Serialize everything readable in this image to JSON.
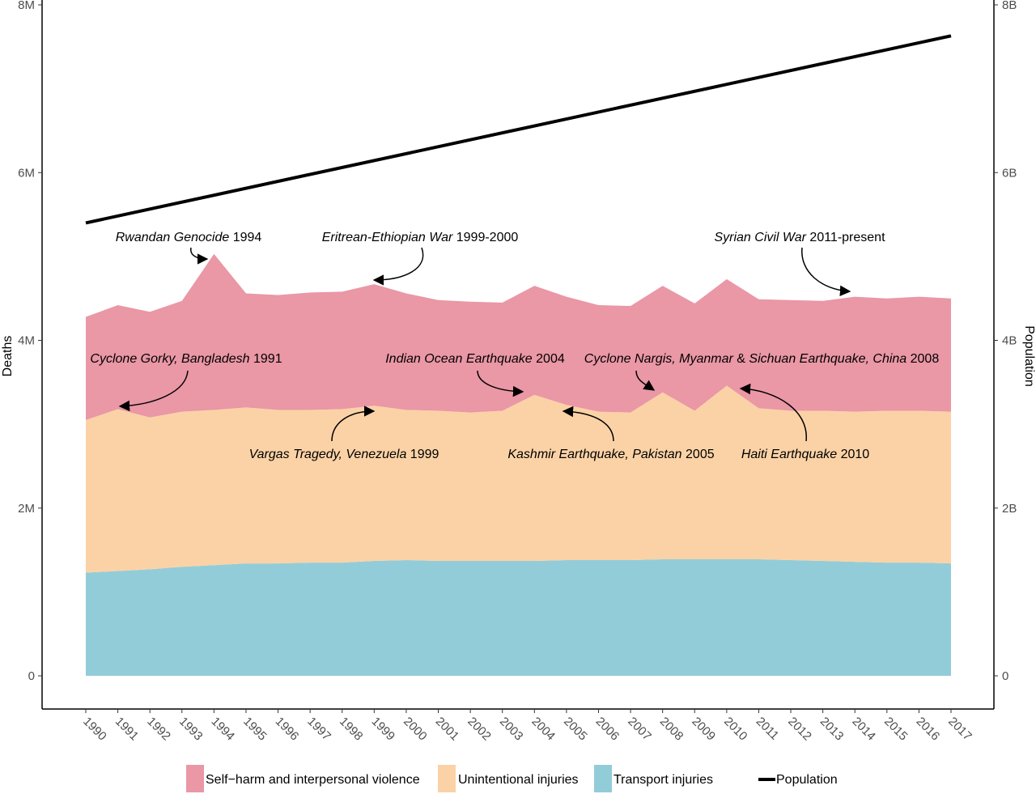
{
  "chart_data": {
    "type": "area",
    "stacked": true,
    "x": [
      1990,
      1991,
      1992,
      1993,
      1994,
      1995,
      1996,
      1997,
      1998,
      1999,
      2000,
      2001,
      2002,
      2003,
      2004,
      2005,
      2006,
      2007,
      2008,
      2009,
      2010,
      2011,
      2012,
      2013,
      2014,
      2015,
      2016,
      2017
    ],
    "x_tick_labels": [
      "1990",
      "1991",
      "1992",
      "1993",
      "1994",
      "1995",
      "1996",
      "1997",
      "1998",
      "1999",
      "2000",
      "2001",
      "2002",
      "2003",
      "2004",
      "2005",
      "2006",
      "2007",
      "2008",
      "2009",
      "2010",
      "2011",
      "2012",
      "2013",
      "2014",
      "2015",
      "2016",
      "2017"
    ],
    "series": [
      {
        "name": "Transport injuries",
        "color": "#93ccd9",
        "values": [
          1230000,
          1250000,
          1270000,
          1300000,
          1320000,
          1340000,
          1340000,
          1350000,
          1350000,
          1370000,
          1380000,
          1370000,
          1370000,
          1370000,
          1370000,
          1380000,
          1380000,
          1380000,
          1390000,
          1390000,
          1390000,
          1390000,
          1380000,
          1370000,
          1360000,
          1350000,
          1350000,
          1340000
        ]
      },
      {
        "name": "Unintentional injuries",
        "color": "#fbd2a6",
        "values": [
          1820000,
          1930000,
          1810000,
          1850000,
          1850000,
          1860000,
          1830000,
          1820000,
          1830000,
          1850000,
          1790000,
          1790000,
          1770000,
          1790000,
          1980000,
          1850000,
          1770000,
          1760000,
          1990000,
          1770000,
          2070000,
          1800000,
          1780000,
          1790000,
          1790000,
          1810000,
          1810000,
          1810000
        ]
      },
      {
        "name": "Self−harm and interpersonal violence",
        "color": "#ea97a6",
        "values": [
          1230000,
          1240000,
          1260000,
          1320000,
          1860000,
          1360000,
          1370000,
          1400000,
          1400000,
          1450000,
          1390000,
          1320000,
          1320000,
          1290000,
          1300000,
          1290000,
          1270000,
          1270000,
          1270000,
          1280000,
          1270000,
          1300000,
          1320000,
          1310000,
          1370000,
          1340000,
          1360000,
          1350000
        ]
      }
    ],
    "line_series": {
      "name": "Population",
      "color": "#000000",
      "axis": "right",
      "values": [
        5400000000,
        7630000000
      ]
    },
    "ylabel": "Deaths",
    "ylim": [
      0,
      8000000
    ],
    "y_ticks": [
      0,
      2000000,
      4000000,
      6000000,
      8000000
    ],
    "y_tick_labels": [
      "0",
      "2M",
      "4M",
      "6M",
      "8M"
    ],
    "y2label": "Population",
    "y2lim": [
      0,
      8000000000
    ],
    "y2_ticks": [
      0,
      2000000000,
      4000000000,
      6000000000,
      8000000000
    ],
    "y2_tick_labels": [
      "0",
      "2B",
      "4B",
      "6B",
      "8B"
    ],
    "grid": false,
    "legend_position": "bottom",
    "annotations": [
      {
        "italic": "Rwandan Genocide",
        "plain": " 1994"
      },
      {
        "italic": "Eritrean-Ethiopian War",
        "plain": " 1999-2000"
      },
      {
        "italic": "Syrian Civil War",
        "plain": " 2011-present"
      },
      {
        "italic": "Cyclone Gorky, Bangladesh",
        "plain": " 1991"
      },
      {
        "italic": "Indian Ocean Earthquake",
        "plain": " 2004"
      },
      {
        "italic": "Cyclone Nargis, Myanmar",
        "plain": " & ",
        "italic2": "Sichuan Earthquake, China",
        "plain2": " 2008"
      },
      {
        "italic": "Vargas Tragedy, Venezuela",
        "plain": " 1999"
      },
      {
        "italic": "Kashmir Earthquake, Pakistan",
        "plain": " 2005"
      },
      {
        "italic": "Haiti Earthquake",
        "plain": " 2010"
      }
    ]
  }
}
